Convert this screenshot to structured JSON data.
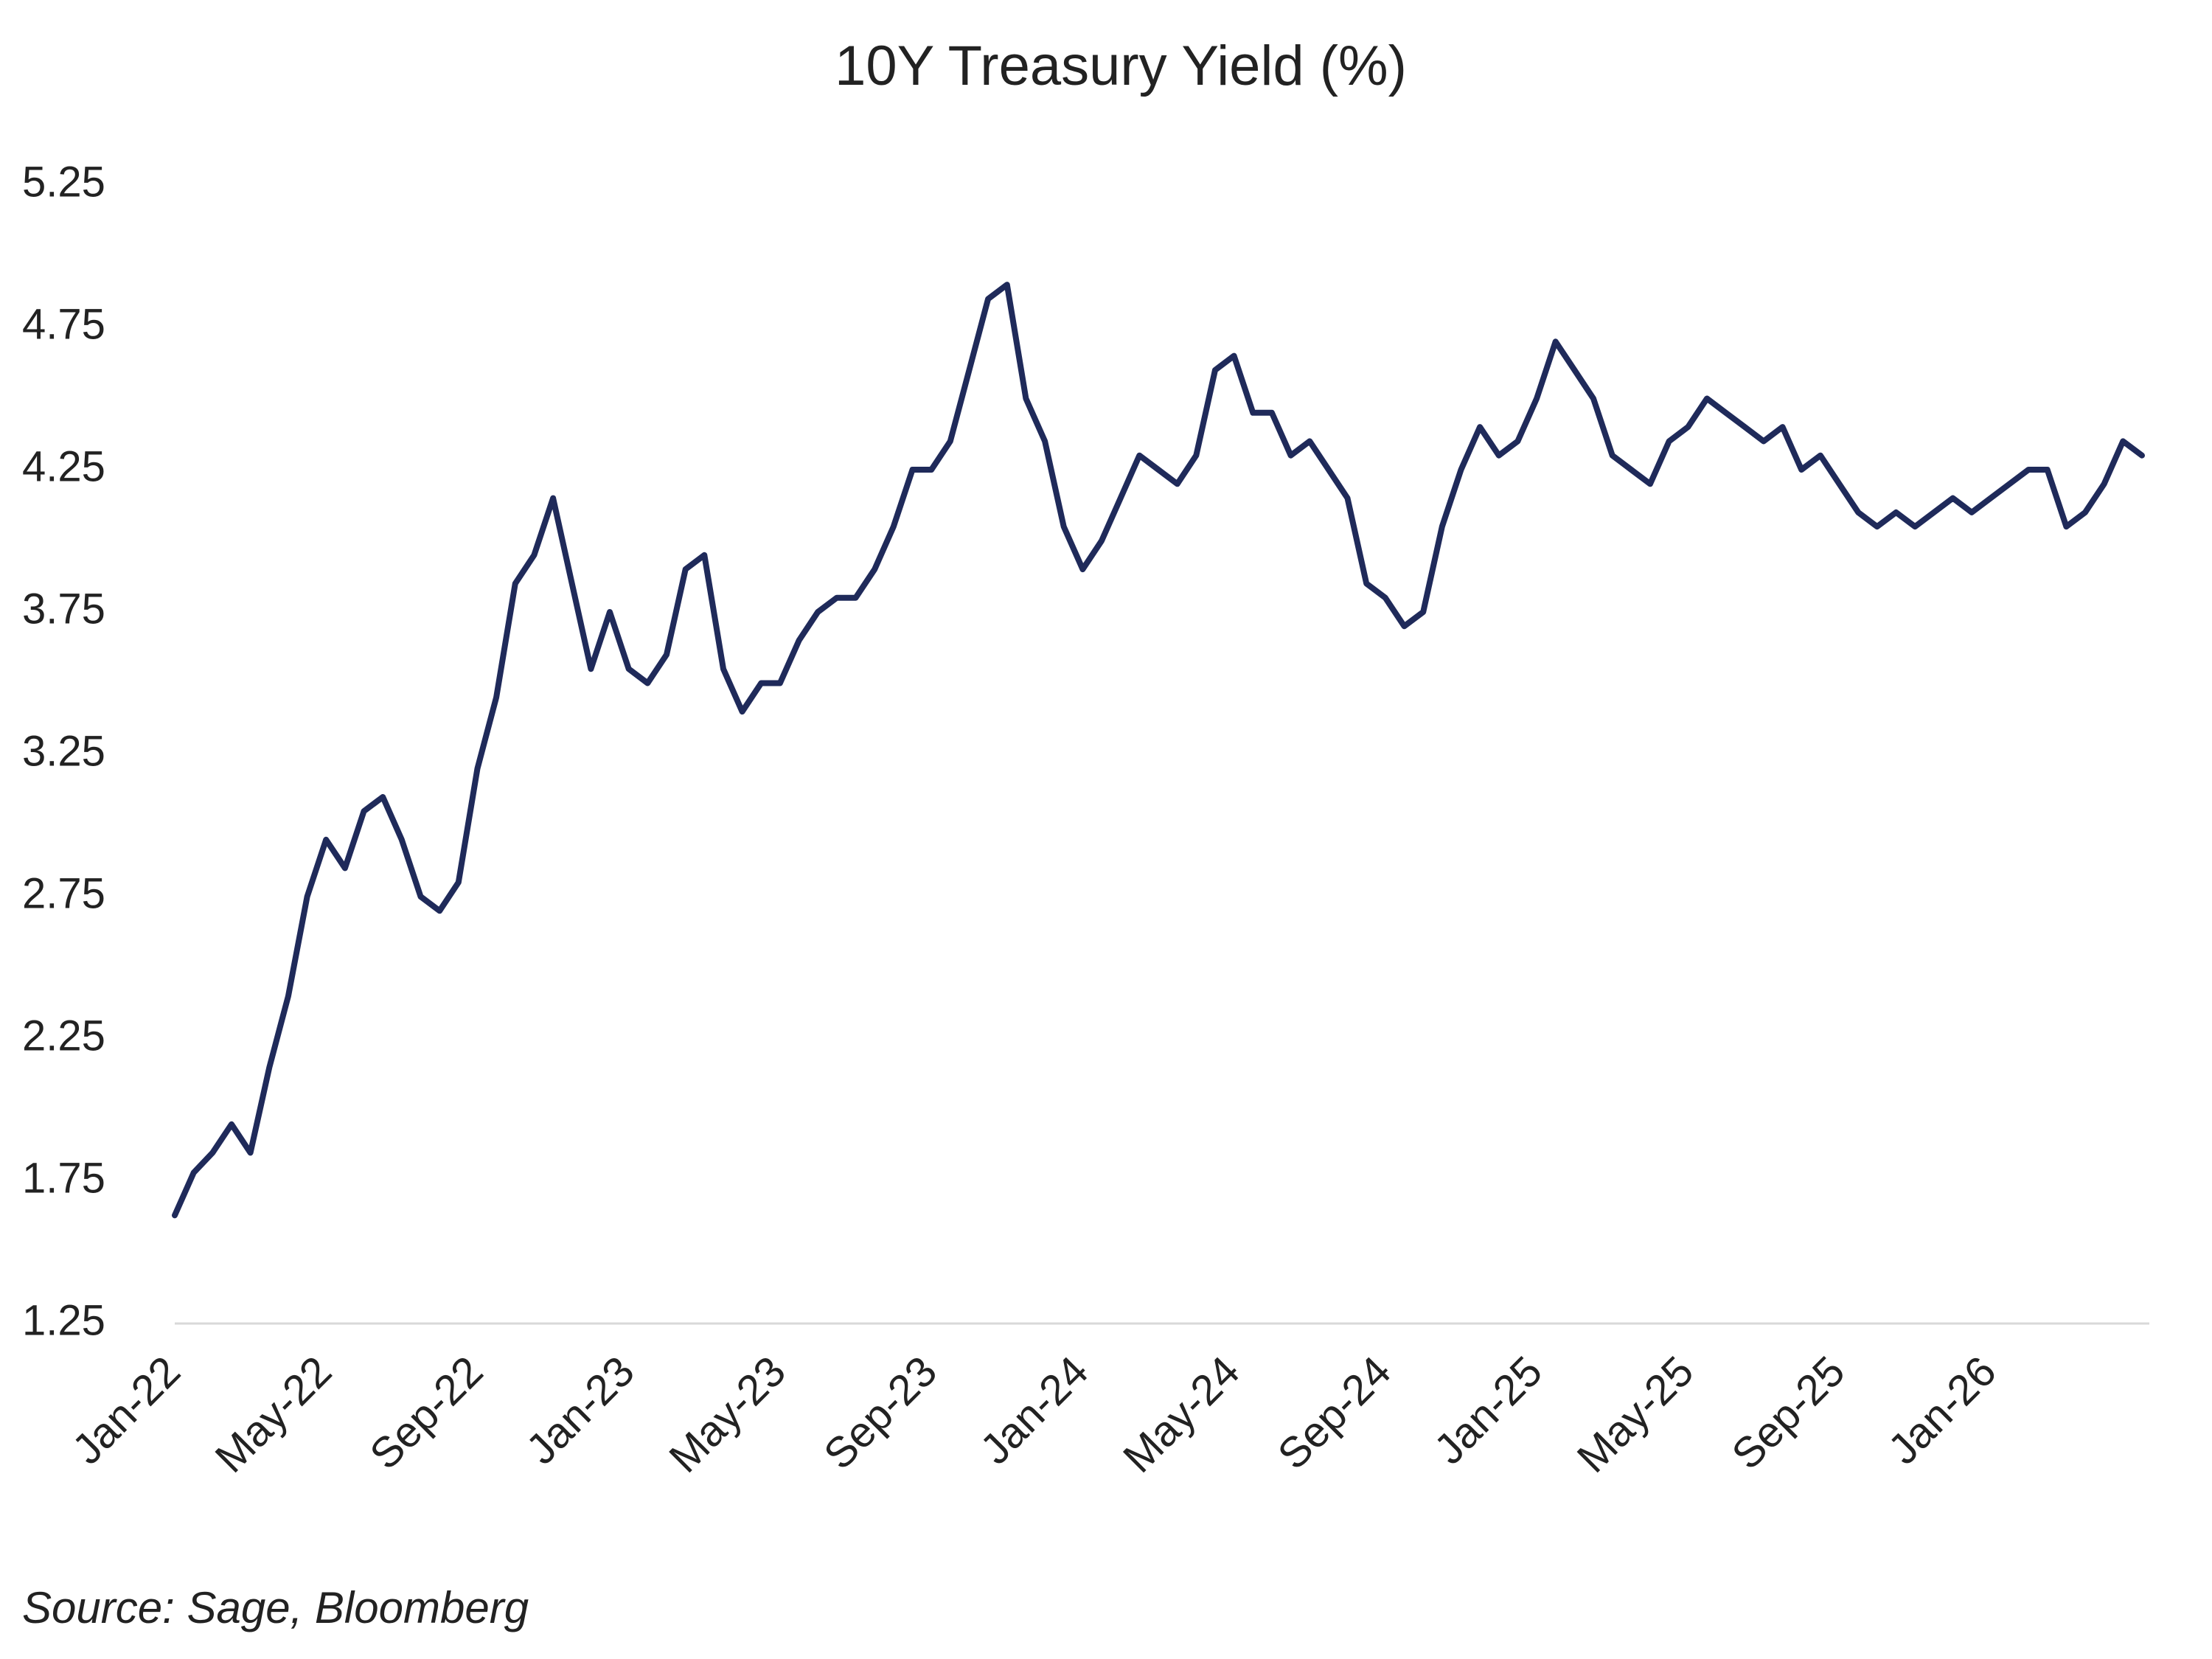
{
  "chart_data": {
    "type": "line",
    "title": "10Y Treasury Yield (%)",
    "source": "Source: Sage, Bloomberg",
    "color": "#1f2a5a",
    "categories": [
      "Jan-22",
      null,
      null,
      null,
      null,
      null,
      null,
      null,
      "May-22",
      null,
      null,
      null,
      null,
      null,
      null,
      null,
      "Sep-22",
      null,
      null,
      null,
      null,
      null,
      null,
      null,
      "Jan-23",
      null,
      null,
      null,
      null,
      null,
      null,
      null,
      "May-23",
      null,
      null,
      null,
      null,
      null,
      null,
      null,
      "Sep-23",
      null,
      null,
      null,
      null,
      null,
      null,
      null,
      "Jan-24",
      null,
      null,
      null,
      null,
      null,
      null,
      null,
      "May-24",
      null,
      null,
      null,
      null,
      null,
      null,
      null,
      "Sep-24",
      null,
      null,
      null,
      null,
      null,
      null,
      null,
      "Jan-25",
      null,
      null,
      null,
      null,
      null,
      null,
      null,
      "May-25",
      null,
      null,
      null,
      null,
      null,
      null,
      null,
      "Sep-25",
      null,
      null,
      null,
      null,
      null,
      null,
      null,
      "Jan-26",
      null,
      null,
      null,
      null,
      null,
      null,
      null,
      null
    ],
    "values": [
      1.63,
      1.78,
      1.85,
      1.95,
      1.85,
      2.15,
      2.4,
      2.75,
      2.95,
      2.85,
      3.05,
      3.1,
      2.95,
      2.75,
      2.7,
      2.8,
      3.2,
      3.45,
      3.85,
      3.95,
      4.15,
      3.85,
      3.55,
      3.75,
      3.55,
      3.5,
      3.6,
      3.9,
      3.95,
      3.55,
      3.4,
      3.5,
      3.5,
      3.65,
      3.75,
      3.8,
      3.8,
      3.9,
      4.05,
      4.25,
      4.25,
      4.35,
      4.6,
      4.85,
      4.9,
      4.5,
      4.35,
      4.05,
      3.9,
      4.0,
      4.15,
      4.3,
      4.25,
      4.2,
      4.3,
      4.6,
      4.65,
      4.45,
      4.45,
      4.3,
      4.35,
      4.25,
      4.15,
      3.85,
      3.8,
      3.7,
      3.75,
      4.05,
      4.25,
      4.4,
      4.3,
      4.35,
      4.5,
      4.7,
      4.6,
      4.5,
      4.3,
      4.25,
      4.2,
      4.35,
      4.4,
      4.5,
      4.45,
      4.4,
      4.35,
      4.4,
      4.25,
      4.3,
      4.2,
      4.1,
      4.05,
      4.1,
      4.05,
      4.1,
      4.15,
      4.1,
      4.15,
      4.2,
      4.25,
      4.25,
      4.05,
      4.1,
      4.2,
      4.35,
      4.3
    ],
    "ylim": [
      1.25,
      5.25
    ],
    "yticks": [
      1.25,
      1.75,
      2.25,
      2.75,
      3.25,
      3.75,
      4.25,
      4.75,
      5.25
    ],
    "grid": false
  }
}
